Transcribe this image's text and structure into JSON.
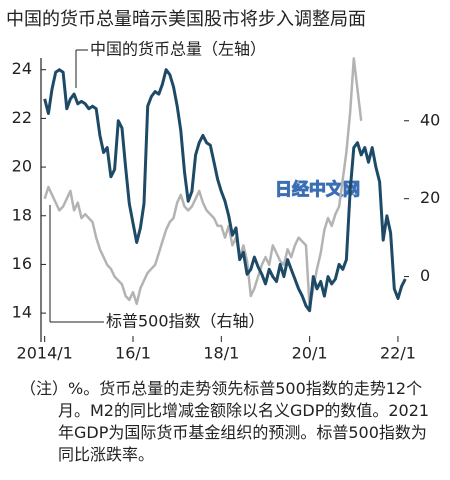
{
  "chart_data": {
    "type": "line",
    "title": "中国的货币总量暗示美国股市将步入调整局面",
    "watermark": "日经中文网",
    "note": "（注）%。货币总量的走势领先标普500指数的走势12个月。M2的同比增减金额除以名义GDP的数值。2021年GDP为国际货币基金组织的预测。标普500指数为同比涨跌率。",
    "x": [
      "2014-01",
      "2014-02",
      "2014-03",
      "2014-04",
      "2014-05",
      "2014-06",
      "2014-07",
      "2014-08",
      "2014-09",
      "2014-10",
      "2014-11",
      "2014-12",
      "2015-01",
      "2015-02",
      "2015-03",
      "2015-04",
      "2015-05",
      "2015-06",
      "2015-07",
      "2015-08",
      "2015-09",
      "2015-10",
      "2015-11",
      "2015-12",
      "2016-01",
      "2016-02",
      "2016-03",
      "2016-04",
      "2016-05",
      "2016-06",
      "2016-07",
      "2016-08",
      "2016-09",
      "2016-10",
      "2016-11",
      "2016-12",
      "2017-01",
      "2017-02",
      "2017-03",
      "2017-04",
      "2017-05",
      "2017-06",
      "2017-07",
      "2017-08",
      "2017-09",
      "2017-10",
      "2017-11",
      "2017-12",
      "2018-01",
      "2018-02",
      "2018-03",
      "2018-04",
      "2018-05",
      "2018-06",
      "2018-07",
      "2018-08",
      "2018-09",
      "2018-10",
      "2018-11",
      "2018-12",
      "2019-01",
      "2019-02",
      "2019-03",
      "2019-04",
      "2019-05",
      "2019-06",
      "2019-07",
      "2019-08",
      "2019-09",
      "2019-10",
      "2019-11",
      "2019-12",
      "2020-01",
      "2020-02",
      "2020-03",
      "2020-04",
      "2020-05",
      "2020-06",
      "2020-07",
      "2020-08",
      "2020-09",
      "2020-10",
      "2020-11",
      "2020-12",
      "2021-01",
      "2021-02",
      "2021-03",
      "2021-04",
      "2021-05",
      "2021-06",
      "2021-07",
      "2021-08",
      "2021-09",
      "2021-10",
      "2021-11",
      "2021-12",
      "2022-01",
      "2022-02",
      "2022-03"
    ],
    "series": [
      {
        "name": "标普500指数（右轴）",
        "color": "#b3b3b3",
        "axis": "y2",
        "values": [
          20,
          23,
          21,
          19,
          17,
          18,
          20,
          22,
          17,
          19,
          15,
          16,
          15,
          14,
          10,
          7,
          5,
          3,
          2,
          0,
          -1,
          -2,
          -5,
          -6,
          -4,
          -7,
          -3,
          -1,
          1,
          2,
          3,
          6,
          9,
          12,
          14,
          15,
          19,
          21,
          18,
          17,
          18,
          20,
          22,
          19,
          17,
          16,
          15,
          13,
          13,
          10,
          13,
          8,
          10,
          5,
          8,
          4,
          -5,
          -3,
          0,
          3,
          5,
          3,
          8,
          6,
          4,
          3,
          7,
          5,
          8,
          10,
          9,
          8,
          -8,
          -3,
          2,
          6,
          12,
          15,
          13,
          16,
          18,
          25,
          32,
          42,
          56,
          48,
          40,
          null,
          null,
          null,
          null,
          null,
          null,
          null,
          null,
          null,
          null,
          null,
          null
        ]
      },
      {
        "name": "中国的货币总量（左轴）",
        "color": "#1d4a66",
        "values": [
          22.8,
          22.2,
          23.2,
          23.9,
          24.0,
          23.9,
          22.4,
          22.8,
          23.0,
          22.6,
          22.7,
          22.6,
          22.4,
          22.5,
          22.4,
          21.3,
          20.6,
          20.8,
          19.6,
          19.9,
          21.9,
          21.6,
          20.0,
          18.5,
          17.7,
          16.9,
          17.5,
          18.5,
          22.5,
          22.9,
          23.1,
          23.0,
          23.4,
          24.0,
          23.8,
          23.3,
          22.5,
          21.5,
          19.8,
          18.6,
          19.0,
          20.5,
          21.0,
          21.3,
          21.0,
          20.9,
          20.2,
          19.5,
          19.0,
          18.6,
          18.0,
          17.2,
          17.5,
          16.2,
          16.5,
          15.6,
          15.8,
          16.3,
          15.9,
          15.6,
          15.2,
          15.8,
          15.5,
          15.3,
          16.0,
          15.5,
          16.2,
          15.8,
          15.4,
          15.0,
          14.7,
          14.3,
          14.1,
          15.5,
          15.0,
          15.3,
          14.7,
          15.5,
          15.2,
          15.4,
          16.0,
          15.8,
          16.2,
          19.0,
          20.8,
          21.0,
          20.5,
          20.8,
          20.2,
          20.8,
          20.0,
          19.4,
          17.0,
          18.0,
          17.3,
          15.0,
          14.6,
          15.1,
          15.4
        ]
      }
    ],
    "xlim": [
      "2013-12",
      "2022-04"
    ],
    "xticks": [
      {
        "value": "2014-01",
        "label": "2014/1"
      },
      {
        "value": "2016-01",
        "label": "16/1"
      },
      {
        "value": "2018-01",
        "label": "18/1"
      },
      {
        "value": "2020-01",
        "label": "20/1"
      },
      {
        "value": "2022-01",
        "label": "22/1"
      }
    ],
    "ylim": [
      13.1,
      24.4
    ],
    "yticks": [
      14,
      16,
      18,
      20,
      22,
      24
    ],
    "y2lim": [
      -15,
      55.6
    ],
    "y2ticks": [
      0,
      20,
      40
    ]
  }
}
